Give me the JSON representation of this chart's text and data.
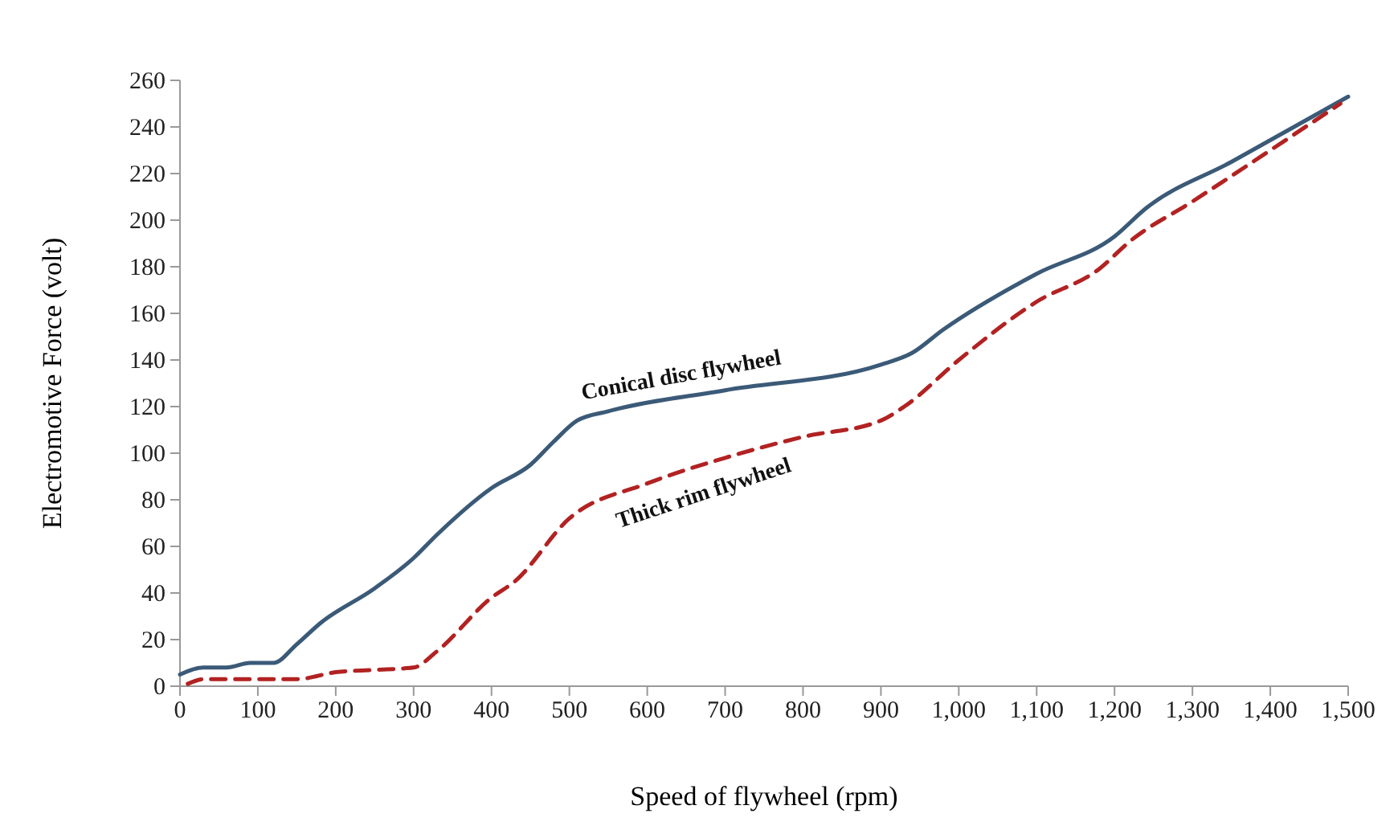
{
  "chart_data": {
    "type": "line",
    "xlabel": "Speed of flywheel (rpm)",
    "ylabel": "Electromotive Force (volt)",
    "xlim": [
      0,
      1500
    ],
    "ylim": [
      0,
      260
    ],
    "xticks": [
      0,
      100,
      200,
      300,
      400,
      500,
      600,
      700,
      800,
      900,
      {
        "value": 1000,
        "label": "1,000"
      },
      {
        "value": 1100,
        "label": "1,100"
      },
      {
        "value": 1200,
        "label": "1,200"
      },
      {
        "value": 1300,
        "label": "1,300"
      },
      {
        "value": 1400,
        "label": "1,400"
      },
      {
        "value": 1500,
        "label": "1,500"
      }
    ],
    "yticks": [
      0,
      20,
      40,
      60,
      80,
      100,
      120,
      140,
      160,
      180,
      200,
      220,
      240,
      260
    ],
    "grid": false,
    "series": [
      {
        "name": "Conical disc flywheel",
        "color": "#3b5a78",
        "line_style": "solid",
        "x": [
          0,
          30,
          60,
          90,
          120,
          150,
          180,
          250,
          300,
          330,
          400,
          450,
          480,
          510,
          550,
          700,
          900,
          940,
          980,
          1100,
          1200,
          1240,
          1350,
          1500
        ],
        "values": [
          5,
          8,
          8,
          10,
          10,
          18,
          27,
          42,
          55,
          65,
          85,
          95,
          105,
          114,
          118,
          127,
          138,
          143,
          153,
          177,
          193,
          205,
          225,
          253
        ]
      },
      {
        "name": "Thick rim flywheel",
        "color": "#b22222",
        "line_style": "dashed",
        "x": [
          10,
          30,
          100,
          150,
          200,
          250,
          300,
          330,
          400,
          430,
          500,
          600,
          700,
          800,
          900,
          930,
          1000,
          1100,
          1180,
          1220,
          1300,
          1400,
          1490
        ],
        "values": [
          1,
          3,
          3,
          3,
          6,
          7,
          8,
          15,
          38,
          45,
          72,
          87,
          98,
          107,
          114,
          120,
          140,
          165,
          179,
          191,
          208,
          230,
          250
        ]
      }
    ]
  }
}
